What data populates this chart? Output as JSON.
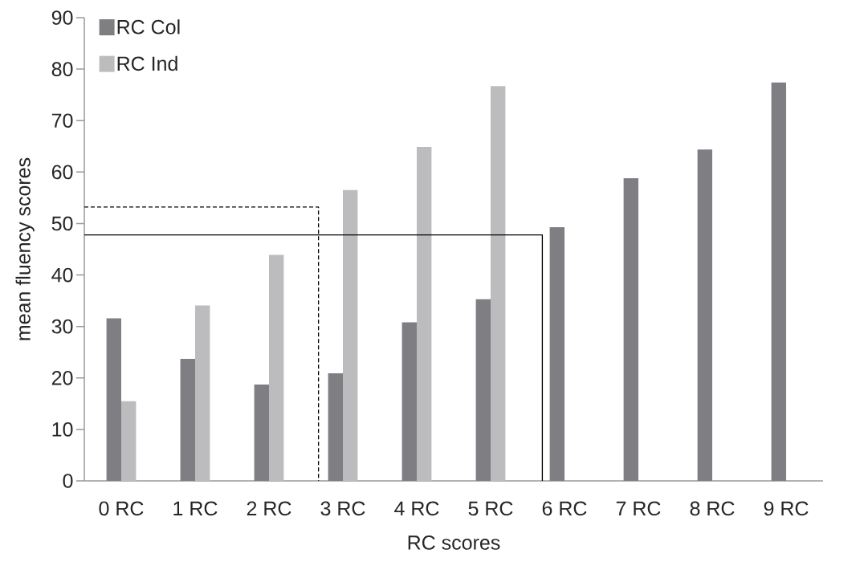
{
  "chart_data": {
    "type": "bar",
    "xlabel": "RC scores",
    "ylabel": "mean fluency scores",
    "x": [
      0,
      1,
      2,
      3,
      4,
      5,
      6,
      7,
      8,
      9
    ],
    "xlim": [
      -0.5,
      9.5
    ],
    "xticks": [
      {
        "value": 0,
        "label": "0 RC"
      },
      {
        "value": 1,
        "label": "1 RC"
      },
      {
        "value": 2,
        "label": "2 RC"
      },
      {
        "value": 3,
        "label": "3 RC"
      },
      {
        "value": 4,
        "label": "4 RC"
      },
      {
        "value": 5,
        "label": "5 RC"
      },
      {
        "value": 6,
        "label": "6 RC"
      },
      {
        "value": 7,
        "label": "7 RC"
      },
      {
        "value": 8,
        "label": "8 RC"
      },
      {
        "value": 9,
        "label": "9 RC"
      }
    ],
    "series": [
      {
        "name": "RC Col",
        "color": "#7f7f83",
        "values": [
          31.6,
          23.7,
          18.7,
          20.9,
          30.8,
          35.3,
          49.3,
          58.8,
          64.4,
          77.4
        ]
      },
      {
        "name": "RC Ind",
        "color": "#bcbcbe",
        "values": [
          15.5,
          34.1,
          43.9,
          56.5,
          64.9,
          76.7,
          null,
          null,
          null,
          null
        ]
      },
      {
        "type": "line",
        "color": "#000000",
        "line_style": "dashed",
        "x": [
          -0.5,
          2.67,
          2.67
        ],
        "values": [
          53.2,
          53.2,
          0
        ]
      },
      {
        "type": "line",
        "color": "#000000",
        "line_style": "solid",
        "x": [
          -0.5,
          5.7,
          5.7
        ],
        "values": [
          47.8,
          47.8,
          0
        ]
      }
    ],
    "ylim": [
      0,
      90
    ],
    "yticks": [
      0,
      10,
      20,
      30,
      40,
      50,
      60,
      70,
      80,
      90
    ],
    "legend": "top left"
  }
}
